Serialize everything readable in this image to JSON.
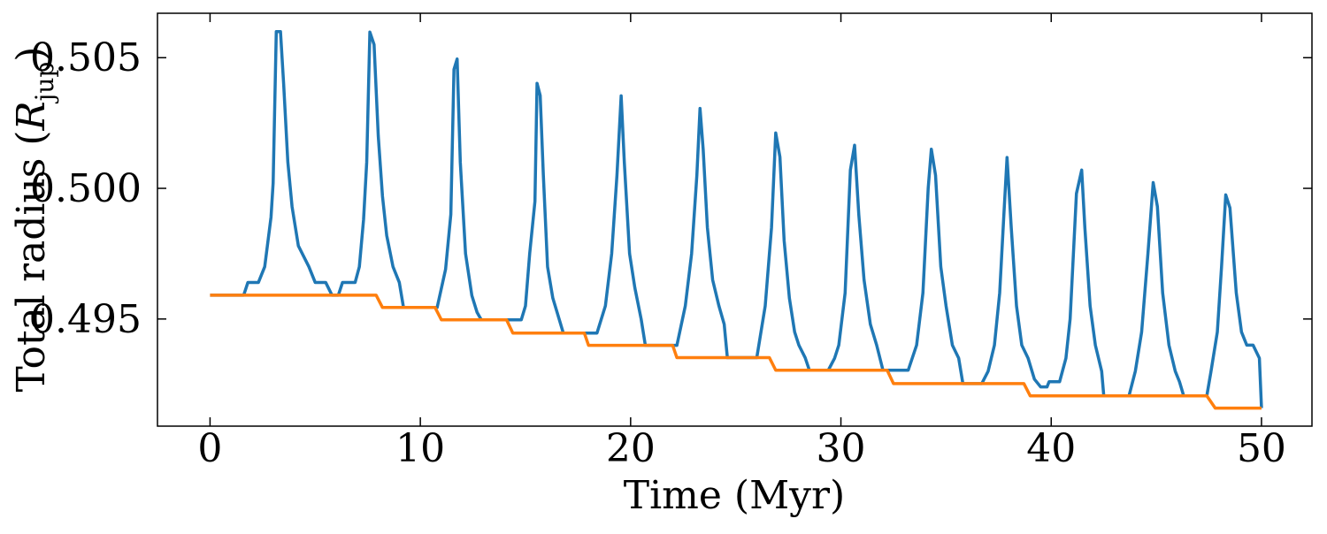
{
  "chart_data": {
    "type": "line",
    "xlabel": "Time (Myr)",
    "ylabel": [
      "Total radius (",
      "R",
      "jup",
      ")"
    ],
    "xlim": [
      -2.5,
      52.4
    ],
    "ylim": [
      0.4909,
      0.5067
    ],
    "xticks": [
      0,
      10,
      20,
      30,
      40,
      50
    ],
    "yticks": [
      0.495,
      {
        "value": 0.5,
        "label": "0.500"
      },
      0.505
    ],
    "series": [
      {
        "color": "#1f77b4",
        "x": [
          0,
          1.6,
          1.8,
          2.3,
          2.6,
          2.9,
          3.0,
          3.15,
          3.35,
          3.5,
          3.7,
          3.9,
          4.2,
          4.7,
          5.0,
          5.5,
          5.8,
          6.1,
          6.3,
          6.9,
          7.1,
          7.3,
          7.45,
          7.6,
          7.8,
          8.0,
          8.2,
          8.4,
          8.7,
          9.0,
          9.2,
          10.8,
          11.2,
          11.45,
          11.6,
          11.75,
          11.9,
          12.15,
          12.45,
          12.7,
          12.9,
          14.8,
          15.0,
          15.2,
          15.45,
          15.55,
          15.7,
          15.85,
          16.05,
          16.3,
          16.6,
          16.8,
          18.4,
          18.8,
          19.1,
          19.35,
          19.55,
          19.7,
          19.95,
          20.2,
          20.5,
          20.7,
          22.2,
          22.6,
          22.9,
          23.15,
          23.3,
          23.45,
          23.65,
          23.9,
          24.2,
          24.45,
          24.6,
          26.0,
          26.4,
          26.7,
          26.9,
          27.1,
          27.3,
          27.55,
          27.8,
          28.0,
          28.3,
          28.5,
          29.4,
          29.7,
          29.9,
          30.2,
          30.45,
          30.65,
          30.85,
          31.1,
          31.4,
          31.7,
          32.0,
          33.2,
          33.6,
          33.9,
          34.15,
          34.3,
          34.5,
          34.75,
          35.0,
          35.3,
          35.6,
          35.8,
          36.7,
          37.0,
          37.3,
          37.55,
          37.75,
          37.9,
          38.1,
          38.35,
          38.6,
          38.9,
          39.2,
          39.5,
          39.8,
          39.9,
          40.4,
          40.7,
          40.9,
          41.2,
          41.45,
          41.6,
          41.85,
          42.1,
          42.4,
          42.5,
          43.7,
          44.0,
          44.3,
          44.6,
          44.85,
          45.05,
          45.3,
          45.6,
          45.9,
          46.1,
          46.3,
          47.4,
          47.6,
          47.9,
          48.1,
          48.3,
          48.5,
          48.8,
          49.05,
          49.3,
          49.6,
          49.9,
          50.0
        ],
        "values": [
          0.49591,
          0.49591,
          0.4964,
          0.4964,
          0.497,
          0.4989,
          0.5002,
          0.506,
          0.506,
          0.504,
          0.501,
          0.4993,
          0.4978,
          0.497,
          0.4964,
          0.4964,
          0.49591,
          0.49591,
          0.4964,
          0.4964,
          0.497,
          0.4988,
          0.501,
          0.50598,
          0.5055,
          0.502,
          0.4997,
          0.4982,
          0.497,
          0.4964,
          0.49544,
          0.49544,
          0.4969,
          0.499,
          0.50455,
          0.50495,
          0.501,
          0.4975,
          0.4959,
          0.49525,
          0.49497,
          0.49497,
          0.4955,
          0.4975,
          0.4995,
          0.50402,
          0.50355,
          0.5005,
          0.497,
          0.4958,
          0.495,
          0.49446,
          0.49446,
          0.4955,
          0.4975,
          0.5005,
          0.50354,
          0.501,
          0.4975,
          0.4962,
          0.495,
          0.49399,
          0.49399,
          0.4955,
          0.4975,
          0.5005,
          0.50306,
          0.5015,
          0.4985,
          0.4965,
          0.4955,
          0.4948,
          0.49352,
          0.49352,
          0.4955,
          0.4985,
          0.50212,
          0.5012,
          0.498,
          0.4958,
          0.4945,
          0.494,
          0.49352,
          0.49304,
          0.49304,
          0.4935,
          0.494,
          0.496,
          0.5007,
          0.50165,
          0.499,
          0.4965,
          0.4948,
          0.494,
          0.49304,
          0.49304,
          0.494,
          0.496,
          0.5,
          0.5015,
          0.5005,
          0.497,
          0.4955,
          0.494,
          0.4935,
          0.49253,
          0.49253,
          0.493,
          0.494,
          0.496,
          0.499,
          0.50118,
          0.4985,
          0.4955,
          0.494,
          0.4935,
          0.4927,
          0.4924,
          0.4924,
          0.4926,
          0.4926,
          0.4935,
          0.495,
          0.4998,
          0.5007,
          0.4985,
          0.4955,
          0.494,
          0.493,
          0.49206,
          0.49206,
          0.493,
          0.4945,
          0.4975,
          0.50022,
          0.4993,
          0.496,
          0.494,
          0.493,
          0.4926,
          0.49206,
          0.49206,
          0.493,
          0.4945,
          0.497,
          0.49975,
          0.49925,
          0.496,
          0.4945,
          0.494,
          0.494,
          0.4935,
          0.49159
        ]
      },
      {
        "color": "#ff7f0e",
        "x": [
          0,
          7.9,
          8.2,
          10.7,
          11.0,
          14.1,
          14.4,
          17.8,
          18.0,
          22.0,
          22.2,
          26.6,
          26.9,
          32.2,
          32.5,
          38.7,
          39.0,
          47.4,
          47.8,
          50.0
        ],
        "values": [
          0.49591,
          0.49591,
          0.49544,
          0.49544,
          0.49497,
          0.49497,
          0.49446,
          0.49446,
          0.49399,
          0.49399,
          0.49352,
          0.49352,
          0.49304,
          0.49304,
          0.49253,
          0.49253,
          0.49206,
          0.49206,
          0.49159,
          0.49159
        ]
      }
    ]
  }
}
